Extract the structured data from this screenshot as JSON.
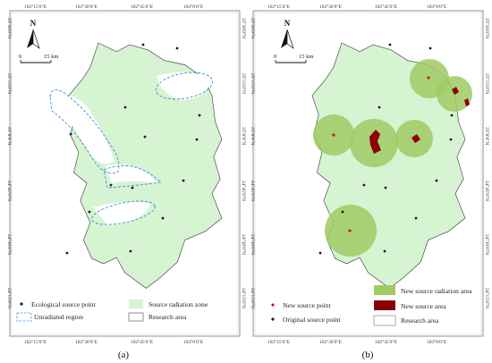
{
  "panels": [
    {
      "label": "(a)",
      "top_ticks": [
        "102°15′0″E",
        "102°30′0″E",
        "102°45′0″E",
        "103°0′0″E"
      ],
      "bottom_ticks": [
        "102°15′0″E",
        "102°30′0″E",
        "102°45′0″E",
        "103°0′0″E"
      ],
      "left_ticks": [
        "25°30′0″N",
        "25°15′0″N",
        "25°0′0″N",
        "24°45′0″N",
        "24°30′0″N",
        "24°15′0″N"
      ],
      "right_ticks": [
        "25°30′0″N",
        "25°15′0″N",
        "25°0′0″N",
        "24°45′0″N",
        "24°30′0″N",
        "24°15′0″N"
      ],
      "north": "N",
      "scale": {
        "start": "0",
        "end": "15 km"
      },
      "legend": {
        "ecological_source_point": "Ecological source point",
        "source_radiation_zone": "Source radiation zone",
        "unradiated_region": "Unradiated region",
        "research_area": "Research area"
      }
    },
    {
      "label": "(b)",
      "top_ticks": [
        "102°15′0″E",
        "102°30′0″E",
        "102°45′0″E",
        "103°0′0″E"
      ],
      "bottom_ticks": [
        "102°15′0″E",
        "102°30′0″E",
        "102°45′0″E",
        "103°0′0″E"
      ],
      "left_ticks": [
        "25°30′0″N",
        "25°15′0″N",
        "25°0′0″N",
        "24°45′0″N",
        "24°30′0″N",
        "24°15′0″N"
      ],
      "right_ticks": [
        "25°30′0″N",
        "25°15′0″N",
        "25°0′0″N",
        "24°45′0″N",
        "24°30′0″N",
        "24°15′0″N"
      ],
      "north": "N",
      "scale": {
        "start": "0",
        "end": "15 km"
      },
      "legend": {
        "new_source_point": "New  source point",
        "original_source_point": "Original  source point",
        "new_source_radiation_area": "New source radiation area",
        "new_source_area": "New source  area",
        "research_area": "Research area"
      }
    }
  ],
  "colors": {
    "research_fill": "#d6f3d2",
    "radiation_fill": "#9fca64",
    "new_area": "#8b0000",
    "new_point": "#e01010",
    "unradiated_outline": "#3f8fd8",
    "point": "#1a1a1a"
  }
}
